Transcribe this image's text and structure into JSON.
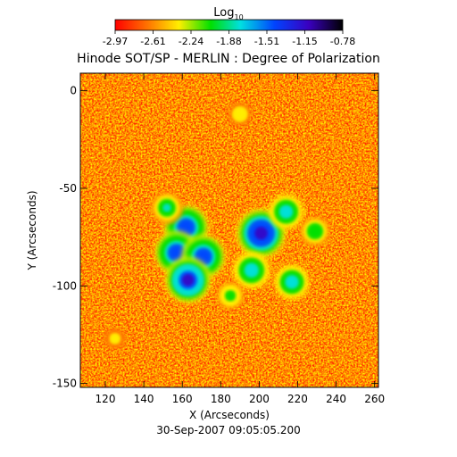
{
  "chart_data": {
    "type": "heatmap",
    "title": "Hinode SOT/SP - MERLIN : Degree of Polarization",
    "xlabel": "X (Arcseconds)",
    "ylabel": "Y (Arcseconds)",
    "timestamp": "30-Sep-2007 09:05:05.200",
    "xlim": [
      107,
      262
    ],
    "ylim": [
      -152,
      9
    ],
    "x_ticks": [
      120,
      140,
      160,
      180,
      200,
      220,
      240,
      260
    ],
    "y_ticks": [
      0,
      -50,
      -100,
      -150
    ],
    "colorbar": {
      "label_base": "Log",
      "label_sub": "10",
      "min": -2.97,
      "max": -0.78,
      "ticks": [
        "-2.97",
        "-2.61",
        "-2.24",
        "-1.88",
        "-1.51",
        "-1.15",
        "-0.78"
      ],
      "colormap": "rainbow (red = low, violet/black = high)"
    },
    "features": [
      {
        "x": 162,
        "y": -70,
        "level": -1.15
      },
      {
        "x": 201,
        "y": -73,
        "level": -0.95
      },
      {
        "x": 157,
        "y": -83,
        "level": -1.2
      },
      {
        "x": 171,
        "y": -85,
        "level": -1.2
      },
      {
        "x": 163,
        "y": -97,
        "level": -1.1
      },
      {
        "x": 196,
        "y": -92,
        "level": -1.5
      },
      {
        "x": 217,
        "y": -98,
        "level": -1.6
      },
      {
        "x": 152,
        "y": -60,
        "level": -1.7
      },
      {
        "x": 214,
        "y": -62,
        "level": -1.6
      },
      {
        "x": 229,
        "y": -72,
        "level": -1.8
      },
      {
        "x": 185,
        "y": -105,
        "level": -1.9
      },
      {
        "x": 190,
        "y": -12,
        "level": -2.1
      },
      {
        "x": 125,
        "y": -127,
        "level": -2.2
      }
    ],
    "background_level": -2.75
  }
}
